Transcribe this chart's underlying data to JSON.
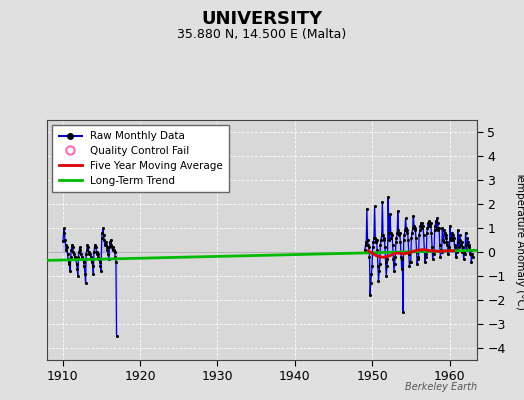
{
  "title": "UNIVERSITY",
  "subtitle": "35.880 N, 14.500 E (Malta)",
  "ylabel": "Temperature Anomaly (°C)",
  "watermark": "Berkeley Earth",
  "xlim": [
    1908.0,
    1963.5
  ],
  "ylim": [
    -4.5,
    5.5
  ],
  "yticks": [
    -4,
    -3,
    -2,
    -1,
    0,
    1,
    2,
    3,
    4,
    5
  ],
  "xticks": [
    1910,
    1920,
    1930,
    1940,
    1950,
    1960
  ],
  "bg_color": "#e0e0e0",
  "plot_bg": "#d8d8d8",
  "raw_color": "#0000cc",
  "fill_color": "#8888ff",
  "ma_color": "#dd0000",
  "trend_color": "#00bb00",
  "early_data": [
    [
      1910.04,
      0.45
    ],
    [
      1910.12,
      0.8
    ],
    [
      1910.21,
      1.0
    ],
    [
      1910.29,
      0.5
    ],
    [
      1910.38,
      0.3
    ],
    [
      1910.46,
      0.1
    ],
    [
      1910.54,
      0.2
    ],
    [
      1910.63,
      -0.1
    ],
    [
      1910.71,
      -0.3
    ],
    [
      1910.79,
      -0.4
    ],
    [
      1910.88,
      -0.5
    ],
    [
      1910.96,
      -0.8
    ],
    [
      1911.04,
      -0.2
    ],
    [
      1911.12,
      0.1
    ],
    [
      1911.21,
      0.3
    ],
    [
      1911.29,
      0.2
    ],
    [
      1911.38,
      0.0
    ],
    [
      1911.46,
      -0.1
    ],
    [
      1911.54,
      -0.2
    ],
    [
      1911.63,
      -0.2
    ],
    [
      1911.71,
      -0.3
    ],
    [
      1911.79,
      -0.5
    ],
    [
      1911.88,
      -0.7
    ],
    [
      1911.96,
      -1.0
    ],
    [
      1912.04,
      -0.2
    ],
    [
      1912.12,
      0.0
    ],
    [
      1912.21,
      0.2
    ],
    [
      1912.29,
      0.1
    ],
    [
      1912.38,
      -0.1
    ],
    [
      1912.46,
      -0.2
    ],
    [
      1912.54,
      -0.3
    ],
    [
      1912.63,
      -0.3
    ],
    [
      1912.71,
      -0.4
    ],
    [
      1912.79,
      -0.6
    ],
    [
      1912.88,
      -0.9
    ],
    [
      1912.96,
      -1.3
    ],
    [
      1913.04,
      -0.1
    ],
    [
      1913.12,
      0.1
    ],
    [
      1913.21,
      0.3
    ],
    [
      1913.29,
      0.2
    ],
    [
      1913.38,
      0.0
    ],
    [
      1913.46,
      -0.1
    ],
    [
      1913.54,
      -0.1
    ],
    [
      1913.63,
      -0.2
    ],
    [
      1913.71,
      -0.3
    ],
    [
      1913.79,
      -0.4
    ],
    [
      1913.88,
      -0.6
    ],
    [
      1913.96,
      -0.9
    ],
    [
      1914.04,
      0.0
    ],
    [
      1914.12,
      0.2
    ],
    [
      1914.21,
      0.3
    ],
    [
      1914.29,
      0.2
    ],
    [
      1914.38,
      0.0
    ],
    [
      1914.46,
      -0.1
    ],
    [
      1914.54,
      -0.1
    ],
    [
      1914.63,
      -0.2
    ],
    [
      1914.71,
      -0.3
    ],
    [
      1914.79,
      -0.4
    ],
    [
      1914.88,
      -0.6
    ],
    [
      1914.96,
      -0.8
    ],
    [
      1915.04,
      0.6
    ],
    [
      1915.12,
      0.8
    ],
    [
      1915.21,
      1.0
    ],
    [
      1915.29,
      0.7
    ],
    [
      1915.38,
      0.5
    ],
    [
      1915.46,
      0.3
    ],
    [
      1915.54,
      0.4
    ],
    [
      1915.63,
      0.3
    ],
    [
      1915.71,
      0.2
    ],
    [
      1915.79,
      0.1
    ],
    [
      1915.88,
      -0.1
    ],
    [
      1915.96,
      -0.3
    ],
    [
      1916.04,
      0.2
    ],
    [
      1916.12,
      0.4
    ],
    [
      1916.21,
      0.5
    ],
    [
      1916.29,
      0.3
    ],
    [
      1916.38,
      0.2
    ],
    [
      1916.46,
      0.1
    ],
    [
      1916.54,
      0.2
    ],
    [
      1916.63,
      0.1
    ],
    [
      1916.71,
      0.0
    ],
    [
      1916.79,
      -0.2
    ],
    [
      1916.88,
      -0.4
    ],
    [
      1916.96,
      -3.5
    ]
  ],
  "late_data": [
    [
      1949.04,
      0.1
    ],
    [
      1949.12,
      0.3
    ],
    [
      1949.21,
      0.4
    ],
    [
      1949.29,
      1.8
    ],
    [
      1949.38,
      0.5
    ],
    [
      1949.46,
      0.3
    ],
    [
      1949.54,
      0.2
    ],
    [
      1949.63,
      -0.2
    ],
    [
      1949.71,
      -1.8
    ],
    [
      1949.79,
      -1.3
    ],
    [
      1949.88,
      -0.9
    ],
    [
      1949.96,
      -0.6
    ],
    [
      1950.04,
      0.2
    ],
    [
      1950.12,
      0.4
    ],
    [
      1950.21,
      0.6
    ],
    [
      1950.29,
      1.9
    ],
    [
      1950.38,
      0.6
    ],
    [
      1950.46,
      0.4
    ],
    [
      1950.54,
      0.5
    ],
    [
      1950.63,
      0.1
    ],
    [
      1950.71,
      -0.6
    ],
    [
      1950.79,
      -1.2
    ],
    [
      1950.88,
      -0.8
    ],
    [
      1950.96,
      -0.5
    ],
    [
      1951.04,
      0.3
    ],
    [
      1951.12,
      0.5
    ],
    [
      1951.21,
      0.7
    ],
    [
      1951.29,
      2.1
    ],
    [
      1951.38,
      0.7
    ],
    [
      1951.46,
      0.5
    ],
    [
      1951.54,
      0.6
    ],
    [
      1951.63,
      0.2
    ],
    [
      1951.71,
      -0.4
    ],
    [
      1951.79,
      -1.0
    ],
    [
      1951.88,
      -0.6
    ],
    [
      1951.96,
      -0.3
    ],
    [
      1952.04,
      2.3
    ],
    [
      1952.12,
      0.8
    ],
    [
      1952.21,
      0.5
    ],
    [
      1952.29,
      1.6
    ],
    [
      1952.38,
      0.8
    ],
    [
      1952.46,
      0.6
    ],
    [
      1952.54,
      0.7
    ],
    [
      1952.63,
      0.3
    ],
    [
      1952.71,
      -0.3
    ],
    [
      1952.79,
      -0.8
    ],
    [
      1952.88,
      -0.5
    ],
    [
      1952.96,
      -0.2
    ],
    [
      1953.04,
      0.4
    ],
    [
      1953.12,
      0.6
    ],
    [
      1953.21,
      0.8
    ],
    [
      1953.29,
      1.7
    ],
    [
      1953.38,
      0.9
    ],
    [
      1953.46,
      0.7
    ],
    [
      1953.54,
      0.8
    ],
    [
      1953.63,
      0.4
    ],
    [
      1953.71,
      -0.2
    ],
    [
      1953.79,
      -0.7
    ],
    [
      1953.88,
      -0.3
    ],
    [
      1953.96,
      -2.5
    ],
    [
      1954.04,
      0.5
    ],
    [
      1954.12,
      0.7
    ],
    [
      1954.21,
      0.9
    ],
    [
      1954.29,
      1.4
    ],
    [
      1954.38,
      1.0
    ],
    [
      1954.46,
      0.8
    ],
    [
      1954.54,
      0.9
    ],
    [
      1954.63,
      0.5
    ],
    [
      1954.71,
      -0.1
    ],
    [
      1954.79,
      -0.6
    ],
    [
      1954.88,
      -0.4
    ],
    [
      1954.96,
      -0.4
    ],
    [
      1955.04,
      0.6
    ],
    [
      1955.12,
      0.8
    ],
    [
      1955.21,
      1.0
    ],
    [
      1955.29,
      1.5
    ],
    [
      1955.38,
      1.1
    ],
    [
      1955.46,
      0.9
    ],
    [
      1955.54,
      1.0
    ],
    [
      1955.63,
      0.6
    ],
    [
      1955.71,
      0.0
    ],
    [
      1955.79,
      -0.5
    ],
    [
      1955.88,
      -0.2
    ],
    [
      1955.96,
      -0.3
    ],
    [
      1956.04,
      0.7
    ],
    [
      1956.12,
      0.9
    ],
    [
      1956.21,
      1.1
    ],
    [
      1956.29,
      1.2
    ],
    [
      1956.38,
      1.2
    ],
    [
      1956.46,
      1.0
    ],
    [
      1956.54,
      1.1
    ],
    [
      1956.63,
      0.7
    ],
    [
      1956.71,
      0.1
    ],
    [
      1956.79,
      -0.4
    ],
    [
      1956.88,
      -0.1
    ],
    [
      1956.96,
      -0.2
    ],
    [
      1957.04,
      0.8
    ],
    [
      1957.12,
      1.0
    ],
    [
      1957.21,
      1.2
    ],
    [
      1957.29,
      1.1
    ],
    [
      1957.38,
      1.3
    ],
    [
      1957.46,
      1.1
    ],
    [
      1957.54,
      1.2
    ],
    [
      1957.63,
      0.8
    ],
    [
      1957.71,
      0.2
    ],
    [
      1957.79,
      -0.3
    ],
    [
      1957.88,
      0.0
    ],
    [
      1957.96,
      -0.1
    ],
    [
      1958.04,
      0.9
    ],
    [
      1958.12,
      1.1
    ],
    [
      1958.21,
      1.3
    ],
    [
      1958.29,
      1.0
    ],
    [
      1958.38,
      1.4
    ],
    [
      1958.46,
      1.2
    ],
    [
      1958.54,
      0.9
    ],
    [
      1958.63,
      1.0
    ],
    [
      1958.71,
      0.3
    ],
    [
      1958.79,
      -0.2
    ],
    [
      1958.88,
      0.1
    ],
    [
      1958.96,
      0.0
    ],
    [
      1959.04,
      1.0
    ],
    [
      1959.12,
      0.5
    ],
    [
      1959.21,
      0.4
    ],
    [
      1959.29,
      0.9
    ],
    [
      1959.38,
      0.8
    ],
    [
      1959.46,
      0.6
    ],
    [
      1959.54,
      0.7
    ],
    [
      1959.63,
      0.3
    ],
    [
      1959.71,
      0.4
    ],
    [
      1959.79,
      -0.1
    ],
    [
      1959.88,
      0.2
    ],
    [
      1959.96,
      0.1
    ],
    [
      1960.04,
      1.1
    ],
    [
      1960.12,
      0.6
    ],
    [
      1960.21,
      0.5
    ],
    [
      1960.29,
      0.8
    ],
    [
      1960.38,
      0.7
    ],
    [
      1960.46,
      0.5
    ],
    [
      1960.54,
      0.6
    ],
    [
      1960.63,
      0.2
    ],
    [
      1960.71,
      0.3
    ],
    [
      1960.79,
      -0.2
    ],
    [
      1960.88,
      0.1
    ],
    [
      1960.96,
      0.0
    ],
    [
      1961.04,
      0.9
    ],
    [
      1961.12,
      0.4
    ],
    [
      1961.21,
      0.2
    ],
    [
      1961.29,
      0.7
    ],
    [
      1961.38,
      0.5
    ],
    [
      1961.46,
      0.3
    ],
    [
      1961.54,
      0.4
    ],
    [
      1961.63,
      0.0
    ],
    [
      1961.71,
      0.2
    ],
    [
      1961.79,
      -0.3
    ],
    [
      1961.88,
      0.0
    ],
    [
      1961.96,
      -0.1
    ],
    [
      1962.04,
      0.8
    ],
    [
      1962.12,
      0.3
    ],
    [
      1962.21,
      0.1
    ],
    [
      1962.29,
      0.6
    ],
    [
      1962.38,
      0.4
    ],
    [
      1962.46,
      0.2
    ],
    [
      1962.54,
      0.3
    ],
    [
      1962.63,
      -0.1
    ],
    [
      1962.71,
      0.1
    ],
    [
      1962.79,
      -0.4
    ],
    [
      1962.88,
      -0.1
    ],
    [
      1962.96,
      -0.2
    ]
  ],
  "trend_x": [
    1908.0,
    1963.5
  ],
  "trend_y": [
    -0.35,
    0.07
  ],
  "ma_x": [
    1949.5,
    1950.0,
    1950.5,
    1951.0,
    1951.5,
    1952.0,
    1952.5,
    1953.0,
    1953.5,
    1954.0,
    1954.5,
    1955.0,
    1955.5,
    1956.0,
    1956.5,
    1957.0,
    1957.5,
    1958.0,
    1958.5,
    1959.0,
    1959.5,
    1960.0,
    1960.5
  ],
  "ma_y": [
    0.05,
    -0.05,
    -0.15,
    -0.2,
    -0.22,
    -0.18,
    -0.12,
    -0.05,
    -0.05,
    -0.08,
    -0.05,
    0.0,
    0.05,
    0.08,
    0.1,
    0.08,
    0.05,
    0.05,
    0.03,
    0.03,
    0.05,
    0.05,
    0.05
  ]
}
